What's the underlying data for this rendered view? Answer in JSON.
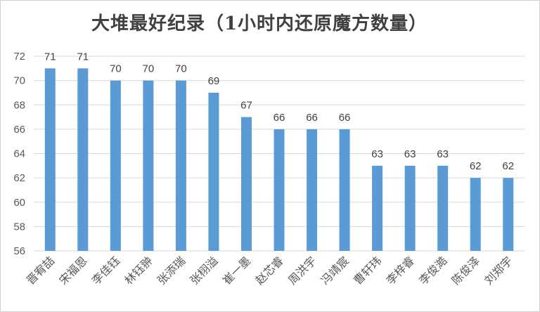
{
  "chart_data": {
    "type": "bar",
    "title": "大堆最好纪录（1小时内还原魔方数量）",
    "categories": [
      "晋宥喆",
      "宋福恩",
      "李佳钰",
      "林钰翀",
      "张添瑞",
      "张栩溢",
      "崔一墨",
      "赵芯睿",
      "周洪宇",
      "冯靖宸",
      "曹轩玮",
      "李梓睿",
      "李俊澔",
      "陈俊泽",
      "刘郑宇"
    ],
    "values": [
      71,
      71,
      70,
      70,
      70,
      69,
      67,
      66,
      66,
      66,
      63,
      63,
      63,
      62,
      62
    ],
    "ylim": [
      56,
      72
    ],
    "yticks": [
      56,
      58,
      60,
      62,
      64,
      66,
      68,
      70,
      72
    ],
    "grid": true,
    "legend": "none",
    "xlabel": "",
    "ylabel": "",
    "bar_color": "#5B9BD5",
    "grid_color": "#d9d9d9"
  }
}
